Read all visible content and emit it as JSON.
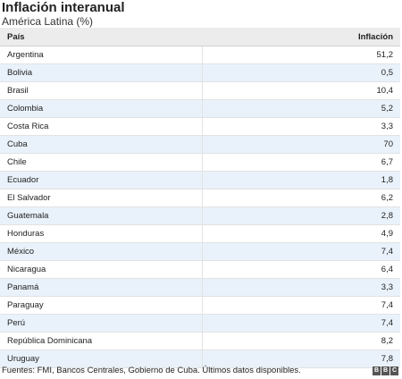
{
  "header": {
    "title": "Inflación interanual",
    "subtitle": "América Latina (%)"
  },
  "footer": {
    "sources": "Fuentes: FMI, Bancos Centrales, Gobierno de Cuba. Últimos datos disponibles.",
    "logo_letters": [
      "B",
      "B",
      "C"
    ]
  },
  "colors": {
    "header_bg": "#ececec",
    "alt_row_bg": "#e9f2fb",
    "logo_bg": "#555555"
  },
  "chart_data": {
    "type": "table",
    "title": "Inflación interanual",
    "subtitle": "América Latina (%)",
    "columns": [
      "País",
      "Inflación"
    ],
    "rows": [
      [
        "Argentina",
        "51,2"
      ],
      [
        "Bolivia",
        "0,5"
      ],
      [
        "Brasil",
        "10,4"
      ],
      [
        "Colombia",
        "5,2"
      ],
      [
        "Costa Rica",
        "3,3"
      ],
      [
        "Cuba",
        "70"
      ],
      [
        "Chile",
        "6,7"
      ],
      [
        "Ecuador",
        "1,8"
      ],
      [
        "El Salvador",
        "6,2"
      ],
      [
        "Guatemala",
        "2,8"
      ],
      [
        "Honduras",
        "4,9"
      ],
      [
        "México",
        "7,4"
      ],
      [
        "Nicaragua",
        "6,4"
      ],
      [
        "Panamá",
        "3,3"
      ],
      [
        "Paraguay",
        "7,4"
      ],
      [
        "Perú",
        "7,4"
      ],
      [
        "República Dominicana",
        "8,2"
      ],
      [
        "Uruguay",
        "7,8"
      ]
    ]
  }
}
